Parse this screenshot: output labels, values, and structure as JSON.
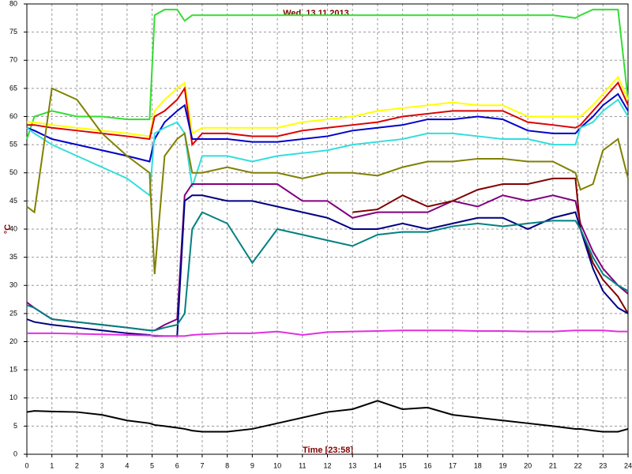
{
  "chart_data": {
    "type": "line",
    "title": "Wed, 13.11.2013",
    "x_label": "Time [23:58]",
    "y_label": "°C",
    "x": [
      0,
      0.3,
      1,
      2,
      3,
      4,
      4.9,
      5.1,
      5.5,
      6,
      6.3,
      6.6,
      7,
      8,
      9,
      10,
      11,
      12,
      13,
      14,
      15,
      16,
      17,
      18,
      19,
      20,
      21,
      21.9,
      22.1,
      22.6,
      23,
      23.6,
      24
    ],
    "xlim": [
      0,
      24
    ],
    "xticks": [
      0,
      1,
      2,
      3,
      4,
      5,
      6,
      7,
      8,
      9,
      10,
      11,
      12,
      13,
      14,
      15,
      16,
      17,
      18,
      19,
      20,
      21,
      22,
      23,
      24
    ],
    "ylim": [
      0,
      80
    ],
    "yticks": [
      0,
      5,
      10,
      15,
      20,
      25,
      30,
      35,
      40,
      45,
      50,
      55,
      60,
      65,
      70,
      75,
      80
    ],
    "grid": true,
    "series": [
      {
        "color": "#33dd33",
        "values": [
          56,
          60,
          61,
          60,
          60,
          59.5,
          59.5,
          78,
          79,
          79,
          77,
          78,
          78,
          78,
          78,
          78,
          78,
          78,
          78,
          78,
          78,
          78,
          78,
          78,
          78,
          78,
          78,
          77.5,
          78,
          79,
          79,
          79,
          63
        ]
      },
      {
        "color": "#ffff00",
        "values": [
          59,
          59,
          58.5,
          58,
          57.5,
          57,
          56.5,
          61,
          63,
          65,
          66,
          57,
          58,
          58,
          58,
          58,
          59,
          59.5,
          60,
          61,
          61.5,
          62,
          62.5,
          62,
          62,
          60,
          60,
          60,
          60,
          62,
          64,
          67,
          63
        ]
      },
      {
        "color": "#dd0000",
        "values": [
          58.5,
          58.5,
          58,
          57.5,
          57,
          56.5,
          56,
          60,
          61,
          63,
          65,
          55,
          57,
          57,
          56.5,
          56.5,
          57.5,
          58,
          58.5,
          59,
          60,
          60.5,
          61,
          61,
          61,
          59,
          58.5,
          58,
          58.5,
          61,
          63,
          66,
          62
        ]
      },
      {
        "color": "#0000cc",
        "values": [
          58,
          57.5,
          56,
          55,
          54,
          53,
          52,
          56,
          59,
          61,
          62,
          56,
          56,
          56,
          55.5,
          55.5,
          56,
          56.5,
          57.5,
          58,
          58.5,
          59.5,
          59.5,
          60,
          59.5,
          57.5,
          57,
          57,
          58,
          60,
          62,
          64,
          61
        ]
      },
      {
        "color": "#33dddd",
        "values": [
          58,
          57,
          55,
          53,
          51,
          49,
          46,
          57,
          58,
          59,
          57,
          47.5,
          53,
          53,
          52,
          53,
          53.5,
          54,
          55,
          55.5,
          56,
          57,
          57,
          56.5,
          56,
          56,
          55,
          55,
          58,
          59,
          61,
          63,
          60
        ]
      },
      {
        "color": "#808000",
        "values": [
          44,
          43,
          65,
          63,
          57,
          53,
          50,
          32,
          53,
          56,
          57,
          50,
          50,
          51,
          50,
          50,
          49,
          50,
          50,
          49.5,
          51,
          52,
          52,
          52.5,
          52.5,
          52,
          52,
          50,
          47,
          48,
          54,
          56,
          49
        ]
      },
      {
        "color": "#800080",
        "values": [
          27,
          26,
          24,
          23.5,
          23,
          22.5,
          22,
          22,
          23,
          24,
          46,
          48,
          48,
          48,
          48,
          48,
          45,
          45,
          42,
          43,
          43,
          43,
          45,
          44,
          46,
          45,
          46,
          45,
          41,
          36,
          33,
          30,
          28.5
        ]
      },
      {
        "color": "#800000",
        "values": [
          null,
          null,
          null,
          null,
          null,
          null,
          null,
          null,
          null,
          null,
          null,
          null,
          null,
          null,
          null,
          null,
          null,
          null,
          43,
          43.5,
          46,
          44,
          45,
          47,
          48,
          48,
          49,
          49,
          40,
          34,
          31,
          28,
          25
        ]
      },
      {
        "color": "#000080",
        "values": [
          24,
          23.5,
          23,
          22.5,
          22,
          21.5,
          21.2,
          21,
          21,
          21,
          45,
          46,
          46,
          45,
          45,
          44,
          43,
          42,
          40,
          40,
          41,
          40,
          41,
          42,
          42,
          40,
          42,
          43,
          40,
          33,
          29,
          26,
          25
        ]
      },
      {
        "color": "#008080",
        "values": [
          26.5,
          26,
          24,
          23.5,
          23,
          22.5,
          22,
          22,
          22.5,
          23,
          25,
          40,
          43,
          41,
          34,
          40,
          39,
          38,
          37,
          39,
          39.5,
          39.5,
          40.5,
          41,
          40.5,
          41,
          41.5,
          41.5,
          40,
          35,
          32,
          30,
          29
        ]
      },
      {
        "color": "#e030e0",
        "values": [
          21.5,
          21.5,
          21.5,
          21.4,
          21.3,
          21.2,
          21.1,
          21.1,
          21,
          21,
          21,
          21.2,
          21.3,
          21.5,
          21.5,
          21.8,
          21.2,
          21.7,
          21.8,
          21.9,
          22,
          22,
          22,
          21.9,
          21.9,
          21.8,
          21.8,
          22,
          22,
          22,
          22,
          21.8,
          21.8
        ]
      },
      {
        "color": "#000000",
        "values": [
          7.5,
          7.7,
          7.6,
          7.5,
          7,
          6,
          5.5,
          5.2,
          5,
          4.7,
          4.5,
          4.2,
          4,
          4,
          4.5,
          5.5,
          6.5,
          7.5,
          8,
          9.5,
          8,
          8.3,
          7,
          6.5,
          6,
          5.5,
          5,
          4.5,
          4.5,
          4.2,
          4,
          4,
          4.5
        ]
      }
    ]
  }
}
